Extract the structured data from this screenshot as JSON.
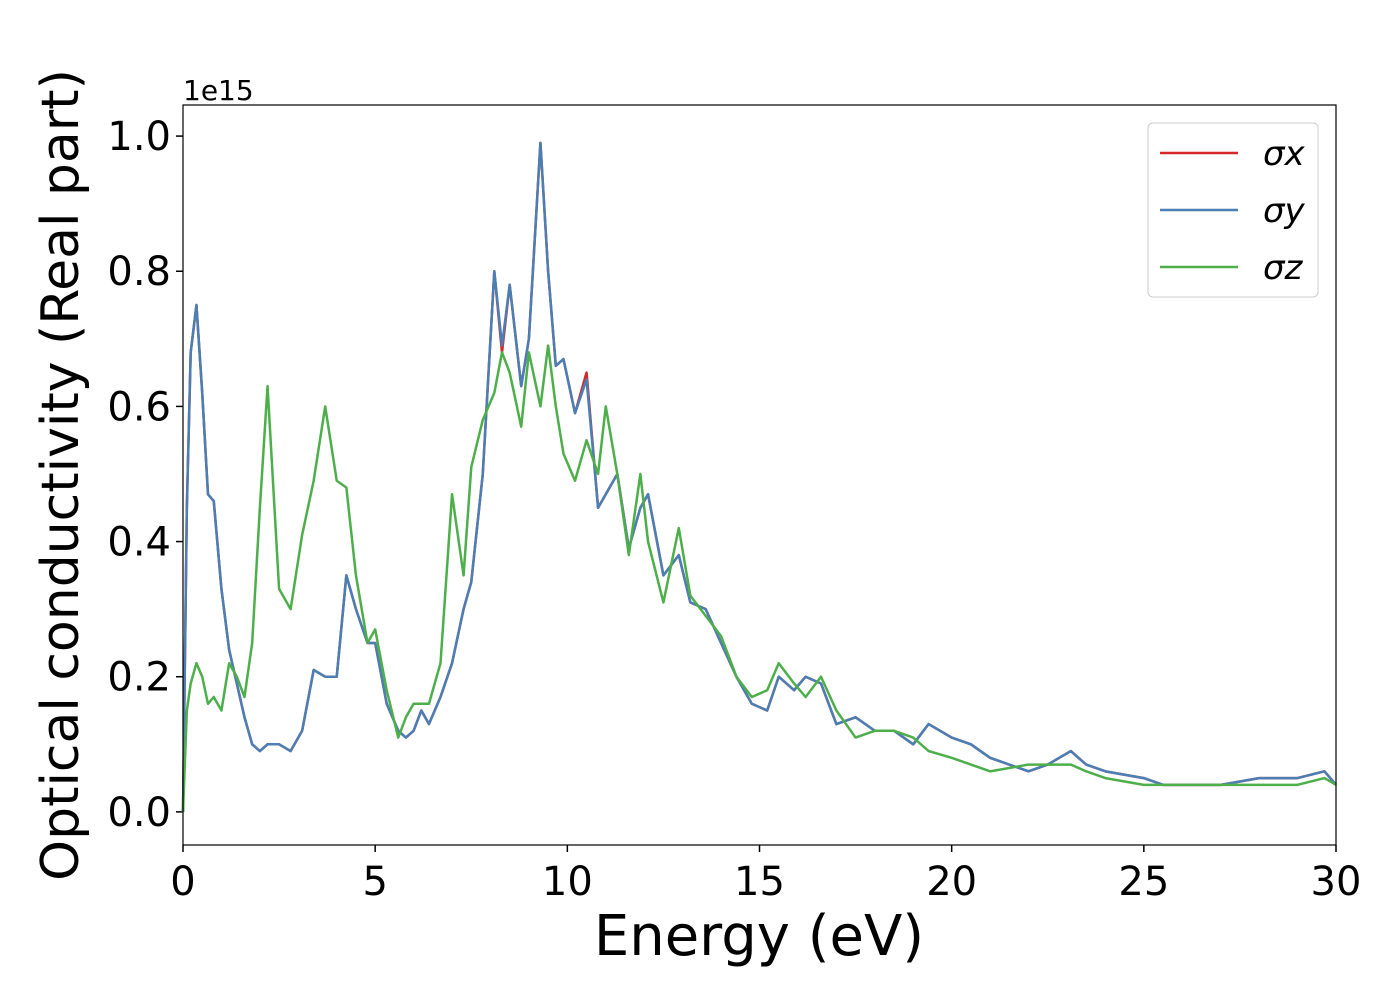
{
  "chart_data": {
    "type": "line",
    "x_label": "Energy (eV)",
    "y_label": "Optical conductivity (Real part)",
    "y_offset_label": "1e15",
    "x": [
      0,
      0.1,
      0.2,
      0.35,
      0.5,
      0.65,
      0.8,
      1.0,
      1.2,
      1.4,
      1.6,
      1.8,
      2.0,
      2.2,
      2.5,
      2.8,
      3.1,
      3.4,
      3.7,
      4.0,
      4.25,
      4.5,
      4.8,
      5.0,
      5.3,
      5.6,
      5.8,
      6.0,
      6.2,
      6.4,
      6.7,
      7.0,
      7.3,
      7.5,
      7.8,
      8.1,
      8.3,
      8.5,
      8.8,
      9.0,
      9.3,
      9.5,
      9.7,
      9.9,
      10.2,
      10.5,
      10.8,
      11.0,
      11.3,
      11.6,
      11.9,
      12.1,
      12.5,
      12.9,
      13.2,
      13.6,
      14.0,
      14.4,
      14.8,
      15.2,
      15.5,
      15.9,
      16.2,
      16.6,
      17.0,
      17.5,
      18.0,
      18.5,
      19.0,
      19.4,
      20.0,
      20.5,
      21.0,
      22.0,
      22.5,
      23.1,
      23.5,
      24.0,
      25.0,
      25.5,
      26,
      27,
      28,
      29,
      29.7,
      30
    ],
    "series": [
      {
        "name": "σx",
        "color": "#d62728",
        "values": [
          0,
          0.45,
          0.68,
          0.75,
          0.62,
          0.47,
          0.46,
          0.33,
          0.24,
          0.19,
          0.14,
          0.1,
          0.09,
          0.1,
          0.1,
          0.09,
          0.12,
          0.21,
          0.2,
          0.2,
          0.35,
          0.3,
          0.25,
          0.25,
          0.16,
          0.12,
          0.11,
          0.12,
          0.15,
          0.13,
          0.17,
          0.22,
          0.3,
          0.34,
          0.5,
          0.8,
          0.68,
          0.78,
          0.63,
          0.7,
          0.99,
          0.8,
          0.66,
          0.67,
          0.59,
          0.65,
          0.45,
          0.47,
          0.5,
          0.39,
          0.45,
          0.47,
          0.35,
          0.38,
          0.31,
          0.3,
          0.25,
          0.2,
          0.16,
          0.15,
          0.2,
          0.18,
          0.2,
          0.19,
          0.13,
          0.14,
          0.12,
          0.12,
          0.1,
          0.13,
          0.11,
          0.1,
          0.08,
          0.06,
          0.07,
          0.09,
          0.07,
          0.06,
          0.05,
          0.04,
          0.04,
          0.04,
          0.05,
          0.05,
          0.06,
          0.04
        ]
      },
      {
        "name": "σy",
        "color": "#4a7fb5",
        "values": [
          0,
          0.45,
          0.68,
          0.75,
          0.62,
          0.47,
          0.46,
          0.33,
          0.24,
          0.19,
          0.14,
          0.1,
          0.09,
          0.1,
          0.1,
          0.09,
          0.12,
          0.21,
          0.2,
          0.2,
          0.35,
          0.3,
          0.25,
          0.25,
          0.16,
          0.12,
          0.11,
          0.12,
          0.15,
          0.13,
          0.17,
          0.22,
          0.3,
          0.34,
          0.5,
          0.8,
          0.69,
          0.78,
          0.63,
          0.7,
          0.99,
          0.8,
          0.66,
          0.67,
          0.59,
          0.64,
          0.45,
          0.47,
          0.5,
          0.39,
          0.45,
          0.47,
          0.35,
          0.38,
          0.31,
          0.3,
          0.25,
          0.2,
          0.16,
          0.15,
          0.2,
          0.18,
          0.2,
          0.19,
          0.13,
          0.14,
          0.12,
          0.12,
          0.1,
          0.13,
          0.11,
          0.1,
          0.08,
          0.06,
          0.07,
          0.09,
          0.07,
          0.06,
          0.05,
          0.04,
          0.04,
          0.04,
          0.05,
          0.05,
          0.06,
          0.04
        ]
      },
      {
        "name": "σz",
        "color": "#4daf4a",
        "values": [
          0,
          0.15,
          0.19,
          0.22,
          0.2,
          0.16,
          0.17,
          0.15,
          0.22,
          0.2,
          0.17,
          0.25,
          0.45,
          0.63,
          0.33,
          0.3,
          0.41,
          0.49,
          0.6,
          0.49,
          0.48,
          0.35,
          0.25,
          0.27,
          0.18,
          0.11,
          0.14,
          0.16,
          0.16,
          0.16,
          0.22,
          0.47,
          0.35,
          0.51,
          0.58,
          0.62,
          0.68,
          0.65,
          0.57,
          0.68,
          0.6,
          0.69,
          0.6,
          0.53,
          0.49,
          0.55,
          0.5,
          0.6,
          0.5,
          0.38,
          0.5,
          0.4,
          0.31,
          0.42,
          0.32,
          0.29,
          0.26,
          0.2,
          0.17,
          0.18,
          0.22,
          0.19,
          0.17,
          0.2,
          0.15,
          0.11,
          0.12,
          0.12,
          0.11,
          0.09,
          0.08,
          0.07,
          0.06,
          0.07,
          0.07,
          0.07,
          0.06,
          0.05,
          0.04,
          0.04,
          0.04,
          0.04,
          0.04,
          0.04,
          0.05,
          0.04
        ]
      }
    ],
    "xlim": [
      0,
      30
    ],
    "xticks": [
      0,
      5,
      10,
      15,
      20,
      25,
      30
    ],
    "ylim": [
      -0.049,
      1.046
    ],
    "yticks": [
      {
        "value": 0,
        "label": "0.0"
      },
      {
        "value": 0.2,
        "label": "0.2"
      },
      {
        "value": 0.4,
        "label": "0.4"
      },
      {
        "value": 0.6,
        "label": "0.6"
      },
      {
        "value": 0.8,
        "label": "0.8"
      },
      {
        "value": 1.0,
        "label": "1.0"
      }
    ],
    "grid": false,
    "legend": "upper right"
  }
}
